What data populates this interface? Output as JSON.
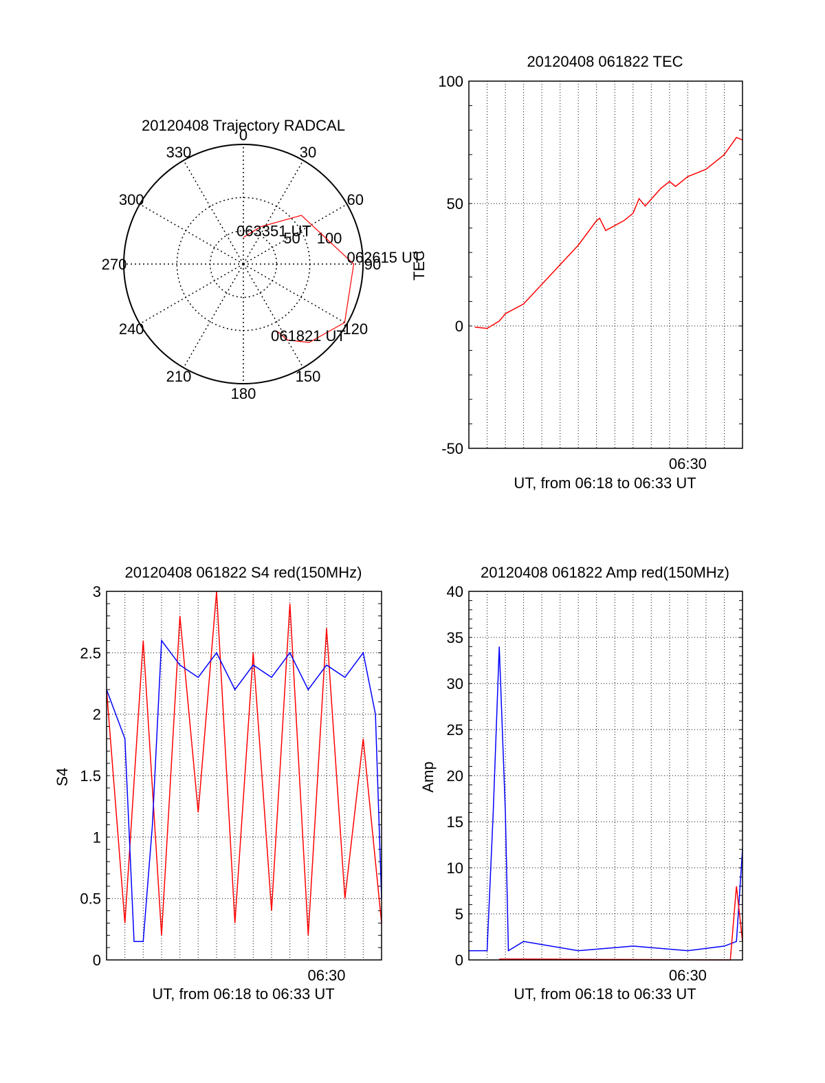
{
  "chart_data": [
    {
      "type": "polar",
      "title": "20120408 Trajectory RADCAL",
      "angle_labels": [
        "0",
        "30",
        "60",
        "90",
        "120",
        "150",
        "180",
        "210",
        "240",
        "270",
        "300",
        "330"
      ],
      "radius_labels": [
        "50",
        "100"
      ],
      "rings": [
        50,
        100
      ],
      "series": [
        {
          "color": "#ff0000",
          "points": [
            {
              "azimuth": 153,
              "elevation": 33,
              "label": "061821 UT"
            },
            {
              "azimuth": 150,
              "elevation": 24
            },
            {
              "azimuth": 140,
              "elevation": 13
            },
            {
              "azimuth": 120,
              "elevation": 2
            },
            {
              "azimuth": 90,
              "elevation": 7,
              "label": "062615 UT"
            },
            {
              "azimuth": 50,
              "elevation": 33
            },
            {
              "azimuth": 25,
              "elevation": 59
            },
            {
              "azimuth": 0,
              "elevation": 70,
              "label": "063351 UT"
            }
          ]
        }
      ]
    },
    {
      "type": "line",
      "title": "20120408 061822 TEC",
      "xlabel": "UT, from 06:18 to 06:33 UT",
      "ylabel": "TEC",
      "xlim": [
        "06:18",
        "06:33"
      ],
      "ylim": [
        -50,
        100
      ],
      "yticks": [
        "-50",
        "0",
        "50",
        "100"
      ],
      "xtick_label": "06:30",
      "series": [
        {
          "color": "#ff0000",
          "x": [
            "06:18:20",
            "06:19:00",
            "06:19:40",
            "06:20:00",
            "06:21:00",
            "06:22:00",
            "06:23:00",
            "06:24:00",
            "06:25:00",
            "06:25:10",
            "06:25:30",
            "06:26:30",
            "06:27:00",
            "06:27:20",
            "06:27:40",
            "06:28:30",
            "06:29:00",
            "06:29:20",
            "06:30:00",
            "06:30:20",
            "06:31:00",
            "06:32:00",
            "06:32:40",
            "06:33:00"
          ],
          "values": [
            -0.5,
            -1,
            2,
            5,
            9,
            17,
            25,
            33,
            43,
            44,
            39,
            43,
            46,
            52,
            49,
            56,
            59,
            57,
            61,
            62,
            64,
            70,
            77,
            76
          ]
        }
      ]
    },
    {
      "type": "line",
      "title": "20120408 061822 S4 red(150MHz)",
      "xlabel": "UT, from 06:18 to 06:33 UT",
      "ylabel": "S4",
      "xlim": [
        "06:18",
        "06:33"
      ],
      "ylim": [
        0,
        3
      ],
      "yticks": [
        "0",
        "0.5",
        "1",
        "1.5",
        "2",
        "2.5",
        "3"
      ],
      "xtick_label": "06:30",
      "series": [
        {
          "color": "#ff0000",
          "x": [
            "06:18",
            "06:19",
            "06:20",
            "06:21",
            "06:22",
            "06:23",
            "06:24",
            "06:25",
            "06:26",
            "06:27",
            "06:28",
            "06:29",
            "06:30",
            "06:31",
            "06:32",
            "06:33"
          ],
          "values": [
            2.2,
            0.3,
            2.6,
            0.2,
            2.8,
            1.2,
            3.0,
            0.3,
            2.5,
            0.4,
            2.9,
            0.2,
            2.7,
            0.5,
            1.8,
            0.3
          ]
        },
        {
          "color": "#0000ff",
          "x": [
            "06:18",
            "06:19",
            "06:19:30",
            "06:20",
            "06:20:30",
            "06:21",
            "06:22",
            "06:23",
            "06:24",
            "06:25",
            "06:26",
            "06:27",
            "06:28",
            "06:29",
            "06:30",
            "06:31",
            "06:32",
            "06:32:40",
            "06:33"
          ],
          "values": [
            2.2,
            1.8,
            0.15,
            0.15,
            1.1,
            2.6,
            2.4,
            2.3,
            2.5,
            2.2,
            2.4,
            2.3,
            2.5,
            2.2,
            2.4,
            2.3,
            2.5,
            2.0,
            0.5
          ]
        }
      ]
    },
    {
      "type": "line",
      "title": "20120408 061822 Amp red(150MHz)",
      "xlabel": "UT, from 06:18 to 06:33 UT",
      "ylabel": "Amp",
      "xlim": [
        "06:18",
        "06:33"
      ],
      "ylim": [
        0,
        40
      ],
      "yticks": [
        "0",
        "5",
        "10",
        "15",
        "20",
        "25",
        "30",
        "35",
        "40"
      ],
      "xtick_label": "06:30",
      "series": [
        {
          "color": "#0000ff",
          "x": [
            "06:18",
            "06:19",
            "06:19:20",
            "06:19:40",
            "06:20:00",
            "06:20:10",
            "06:21",
            "06:24",
            "06:27",
            "06:30",
            "06:32",
            "06:32:40",
            "06:33"
          ],
          "values": [
            1,
            1,
            16,
            34,
            16,
            1,
            2,
            1,
            1.5,
            1,
            1.5,
            2,
            12
          ]
        },
        {
          "color": "#ff0000",
          "x": [
            "06:19:40",
            "06:20:00",
            "06:32:20",
            "06:32:40",
            "06:33"
          ],
          "values": [
            0.1,
            0.1,
            0,
            8,
            2
          ]
        }
      ]
    }
  ]
}
